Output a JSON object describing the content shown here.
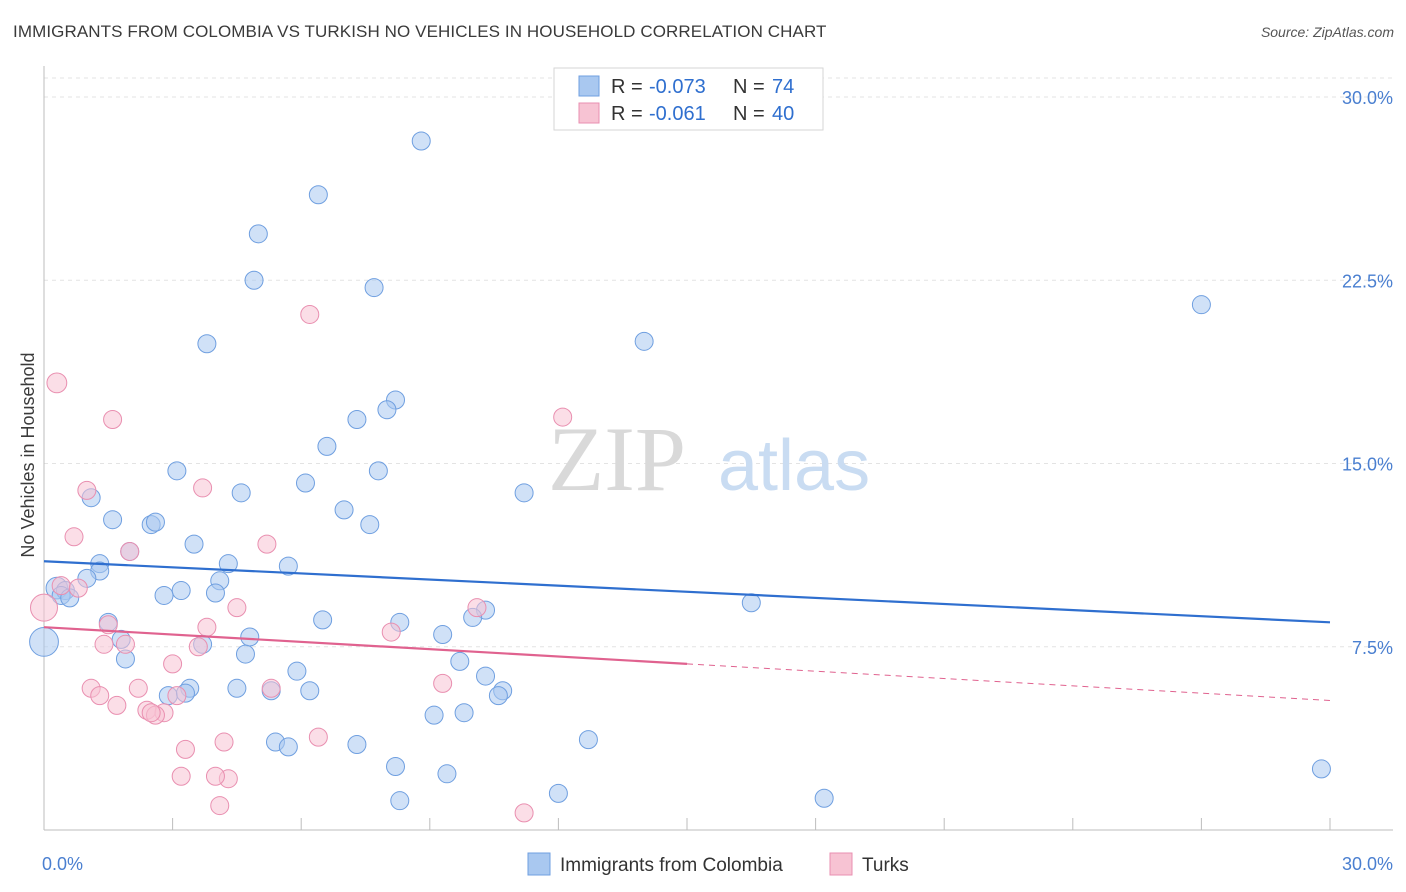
{
  "title": "IMMIGRANTS FROM COLOMBIA VS TURKISH NO VEHICLES IN HOUSEHOLD CORRELATION CHART",
  "source": "Source: ZipAtlas.com",
  "watermark": {
    "zip": "ZIP",
    "atlas": "atlas"
  },
  "legend": {
    "r_label": "R =",
    "n_label": "N =",
    "rows": [
      {
        "r": "-0.073",
        "n": "74",
        "color": "#a9c8f0",
        "stroke": "#6f9fe0"
      },
      {
        "r": "-0.061",
        "n": "40",
        "color": "#f7c3d3",
        "stroke": "#e98fb0"
      }
    ]
  },
  "chart_data": {
    "type": "scatter",
    "xlabel": "",
    "ylabel": "No Vehicles in Household",
    "xlim": [
      0,
      30
    ],
    "ylim": [
      0,
      30
    ],
    "x_tick_labels": [
      {
        "value": 0,
        "label": "0.0%"
      },
      {
        "value": 30,
        "label": "30.0%"
      }
    ],
    "y_tick_labels": [
      {
        "value": 7.5,
        "label": "7.5%"
      },
      {
        "value": 15,
        "label": "15.0%"
      },
      {
        "value": 22.5,
        "label": "22.5%"
      },
      {
        "value": 30,
        "label": "30.0%"
      }
    ],
    "grid": true,
    "series": [
      {
        "name": "Immigrants from Colombia",
        "color": "#a9c8f0",
        "stroke": "#6f9fe0",
        "line_color": "#2f6fcf",
        "trend": {
          "x0": 0,
          "y0": 11.0,
          "x1": 30,
          "y1": 8.5,
          "solid_to": 30
        },
        "points": [
          {
            "x": 8.8,
            "y": 28.2,
            "s": 1
          },
          {
            "x": 6.4,
            "y": 26.0,
            "s": 1
          },
          {
            "x": 5.0,
            "y": 24.4,
            "s": 1
          },
          {
            "x": 4.9,
            "y": 22.5,
            "s": 1
          },
          {
            "x": 7.7,
            "y": 22.2,
            "s": 1
          },
          {
            "x": 27.0,
            "y": 21.5,
            "s": 1
          },
          {
            "x": 14.0,
            "y": 20.0,
            "s": 1
          },
          {
            "x": 3.8,
            "y": 19.9,
            "s": 1
          },
          {
            "x": 8.2,
            "y": 17.6,
            "s": 1
          },
          {
            "x": 8.0,
            "y": 17.2,
            "s": 1
          },
          {
            "x": 7.3,
            "y": 16.8,
            "s": 1
          },
          {
            "x": 6.6,
            "y": 15.7,
            "s": 1
          },
          {
            "x": 3.1,
            "y": 14.7,
            "s": 1
          },
          {
            "x": 7.8,
            "y": 14.7,
            "s": 1
          },
          {
            "x": 6.1,
            "y": 14.2,
            "s": 1
          },
          {
            "x": 4.6,
            "y": 13.8,
            "s": 1
          },
          {
            "x": 11.2,
            "y": 13.8,
            "s": 1
          },
          {
            "x": 1.1,
            "y": 13.6,
            "s": 1
          },
          {
            "x": 7.0,
            "y": 13.1,
            "s": 1
          },
          {
            "x": 1.6,
            "y": 12.7,
            "s": 1
          },
          {
            "x": 2.5,
            "y": 12.5,
            "s": 1
          },
          {
            "x": 2.6,
            "y": 12.6,
            "s": 1
          },
          {
            "x": 7.6,
            "y": 12.5,
            "s": 1
          },
          {
            "x": 3.5,
            "y": 11.7,
            "s": 1
          },
          {
            "x": 2.0,
            "y": 11.4,
            "s": 1
          },
          {
            "x": 1.3,
            "y": 10.9,
            "s": 1
          },
          {
            "x": 4.3,
            "y": 10.9,
            "s": 1
          },
          {
            "x": 5.7,
            "y": 10.8,
            "s": 1
          },
          {
            "x": 1.3,
            "y": 10.6,
            "s": 1
          },
          {
            "x": 1.0,
            "y": 10.3,
            "s": 1
          },
          {
            "x": 4.1,
            "y": 10.2,
            "s": 1
          },
          {
            "x": 0.3,
            "y": 9.9,
            "s": 1.2
          },
          {
            "x": 0.5,
            "y": 9.8,
            "s": 1
          },
          {
            "x": 3.2,
            "y": 9.8,
            "s": 1
          },
          {
            "x": 4.0,
            "y": 9.7,
            "s": 1
          },
          {
            "x": 0.4,
            "y": 9.6,
            "s": 1
          },
          {
            "x": 0.6,
            "y": 9.5,
            "s": 1
          },
          {
            "x": 2.8,
            "y": 9.6,
            "s": 1
          },
          {
            "x": 16.5,
            "y": 9.3,
            "s": 1
          },
          {
            "x": 10.3,
            "y": 9.0,
            "s": 1
          },
          {
            "x": 10.0,
            "y": 8.7,
            "s": 1
          },
          {
            "x": 1.5,
            "y": 8.5,
            "s": 1
          },
          {
            "x": 6.5,
            "y": 8.6,
            "s": 1
          },
          {
            "x": 8.3,
            "y": 8.5,
            "s": 1
          },
          {
            "x": 9.3,
            "y": 8.0,
            "s": 1
          },
          {
            "x": 4.8,
            "y": 7.9,
            "s": 1
          },
          {
            "x": 1.8,
            "y": 7.8,
            "s": 1
          },
          {
            "x": 3.7,
            "y": 7.6,
            "s": 1
          },
          {
            "x": 0.0,
            "y": 7.7,
            "s": 1.6
          },
          {
            "x": 4.7,
            "y": 7.2,
            "s": 1
          },
          {
            "x": 1.9,
            "y": 7.0,
            "s": 1
          },
          {
            "x": 9.7,
            "y": 6.9,
            "s": 1
          },
          {
            "x": 5.9,
            "y": 6.5,
            "s": 1
          },
          {
            "x": 10.3,
            "y": 6.3,
            "s": 1
          },
          {
            "x": 3.4,
            "y": 5.8,
            "s": 1
          },
          {
            "x": 4.5,
            "y": 5.8,
            "s": 1
          },
          {
            "x": 5.3,
            "y": 5.7,
            "s": 1
          },
          {
            "x": 6.2,
            "y": 5.7,
            "s": 1
          },
          {
            "x": 10.7,
            "y": 5.7,
            "s": 1
          },
          {
            "x": 10.6,
            "y": 5.5,
            "s": 1
          },
          {
            "x": 2.9,
            "y": 5.5,
            "s": 1
          },
          {
            "x": 9.8,
            "y": 4.8,
            "s": 1
          },
          {
            "x": 9.1,
            "y": 4.7,
            "s": 1
          },
          {
            "x": 12.7,
            "y": 3.7,
            "s": 1
          },
          {
            "x": 5.4,
            "y": 3.6,
            "s": 1
          },
          {
            "x": 7.3,
            "y": 3.5,
            "s": 1
          },
          {
            "x": 5.7,
            "y": 3.4,
            "s": 1
          },
          {
            "x": 8.2,
            "y": 2.6,
            "s": 1
          },
          {
            "x": 9.4,
            "y": 2.3,
            "s": 1
          },
          {
            "x": 29.8,
            "y": 2.5,
            "s": 1
          },
          {
            "x": 12.0,
            "y": 1.5,
            "s": 1
          },
          {
            "x": 18.2,
            "y": 1.3,
            "s": 1
          },
          {
            "x": 8.3,
            "y": 1.2,
            "s": 1
          },
          {
            "x": 3.3,
            "y": 5.6,
            "s": 1
          }
        ]
      },
      {
        "name": "Turks",
        "color": "#f7c3d3",
        "stroke": "#e98fb0",
        "line_color": "#e0628f",
        "trend": {
          "x0": 0,
          "y0": 8.3,
          "x1": 30,
          "y1": 5.3,
          "solid_to": 15
        },
        "points": [
          {
            "x": 0.3,
            "y": 18.3,
            "s": 1.1
          },
          {
            "x": 6.2,
            "y": 21.1,
            "s": 1
          },
          {
            "x": 12.1,
            "y": 16.9,
            "s": 1
          },
          {
            "x": 1.6,
            "y": 16.8,
            "s": 1
          },
          {
            "x": 3.7,
            "y": 14.0,
            "s": 1
          },
          {
            "x": 1.0,
            "y": 13.9,
            "s": 1
          },
          {
            "x": 0.7,
            "y": 12.0,
            "s": 1
          },
          {
            "x": 5.2,
            "y": 11.7,
            "s": 1
          },
          {
            "x": 2.0,
            "y": 11.4,
            "s": 1
          },
          {
            "x": 0.4,
            "y": 10.0,
            "s": 1
          },
          {
            "x": 0.8,
            "y": 9.9,
            "s": 1
          },
          {
            "x": 0.0,
            "y": 9.1,
            "s": 1.5
          },
          {
            "x": 4.5,
            "y": 9.1,
            "s": 1
          },
          {
            "x": 10.1,
            "y": 9.1,
            "s": 1
          },
          {
            "x": 3.8,
            "y": 8.3,
            "s": 1
          },
          {
            "x": 8.1,
            "y": 8.1,
            "s": 1
          },
          {
            "x": 1.4,
            "y": 7.6,
            "s": 1
          },
          {
            "x": 1.9,
            "y": 7.6,
            "s": 1
          },
          {
            "x": 3.6,
            "y": 7.5,
            "s": 1
          },
          {
            "x": 3.0,
            "y": 6.8,
            "s": 1
          },
          {
            "x": 9.3,
            "y": 6.0,
            "s": 1
          },
          {
            "x": 1.1,
            "y": 5.8,
            "s": 1
          },
          {
            "x": 2.2,
            "y": 5.8,
            "s": 1
          },
          {
            "x": 5.3,
            "y": 5.8,
            "s": 1
          },
          {
            "x": 1.3,
            "y": 5.5,
            "s": 1
          },
          {
            "x": 1.7,
            "y": 5.1,
            "s": 1
          },
          {
            "x": 3.1,
            "y": 5.5,
            "s": 1
          },
          {
            "x": 2.4,
            "y": 4.9,
            "s": 1
          },
          {
            "x": 2.8,
            "y": 4.8,
            "s": 1
          },
          {
            "x": 2.6,
            "y": 4.7,
            "s": 1
          },
          {
            "x": 6.4,
            "y": 3.8,
            "s": 1
          },
          {
            "x": 4.2,
            "y": 3.6,
            "s": 1
          },
          {
            "x": 3.3,
            "y": 3.3,
            "s": 1
          },
          {
            "x": 4.3,
            "y": 2.1,
            "s": 1
          },
          {
            "x": 3.2,
            "y": 2.2,
            "s": 1
          },
          {
            "x": 4.0,
            "y": 2.2,
            "s": 1
          },
          {
            "x": 4.1,
            "y": 1.0,
            "s": 1
          },
          {
            "x": 11.2,
            "y": 0.7,
            "s": 1
          },
          {
            "x": 2.5,
            "y": 4.8,
            "s": 1
          },
          {
            "x": 1.5,
            "y": 8.4,
            "s": 1
          }
        ]
      }
    ]
  }
}
